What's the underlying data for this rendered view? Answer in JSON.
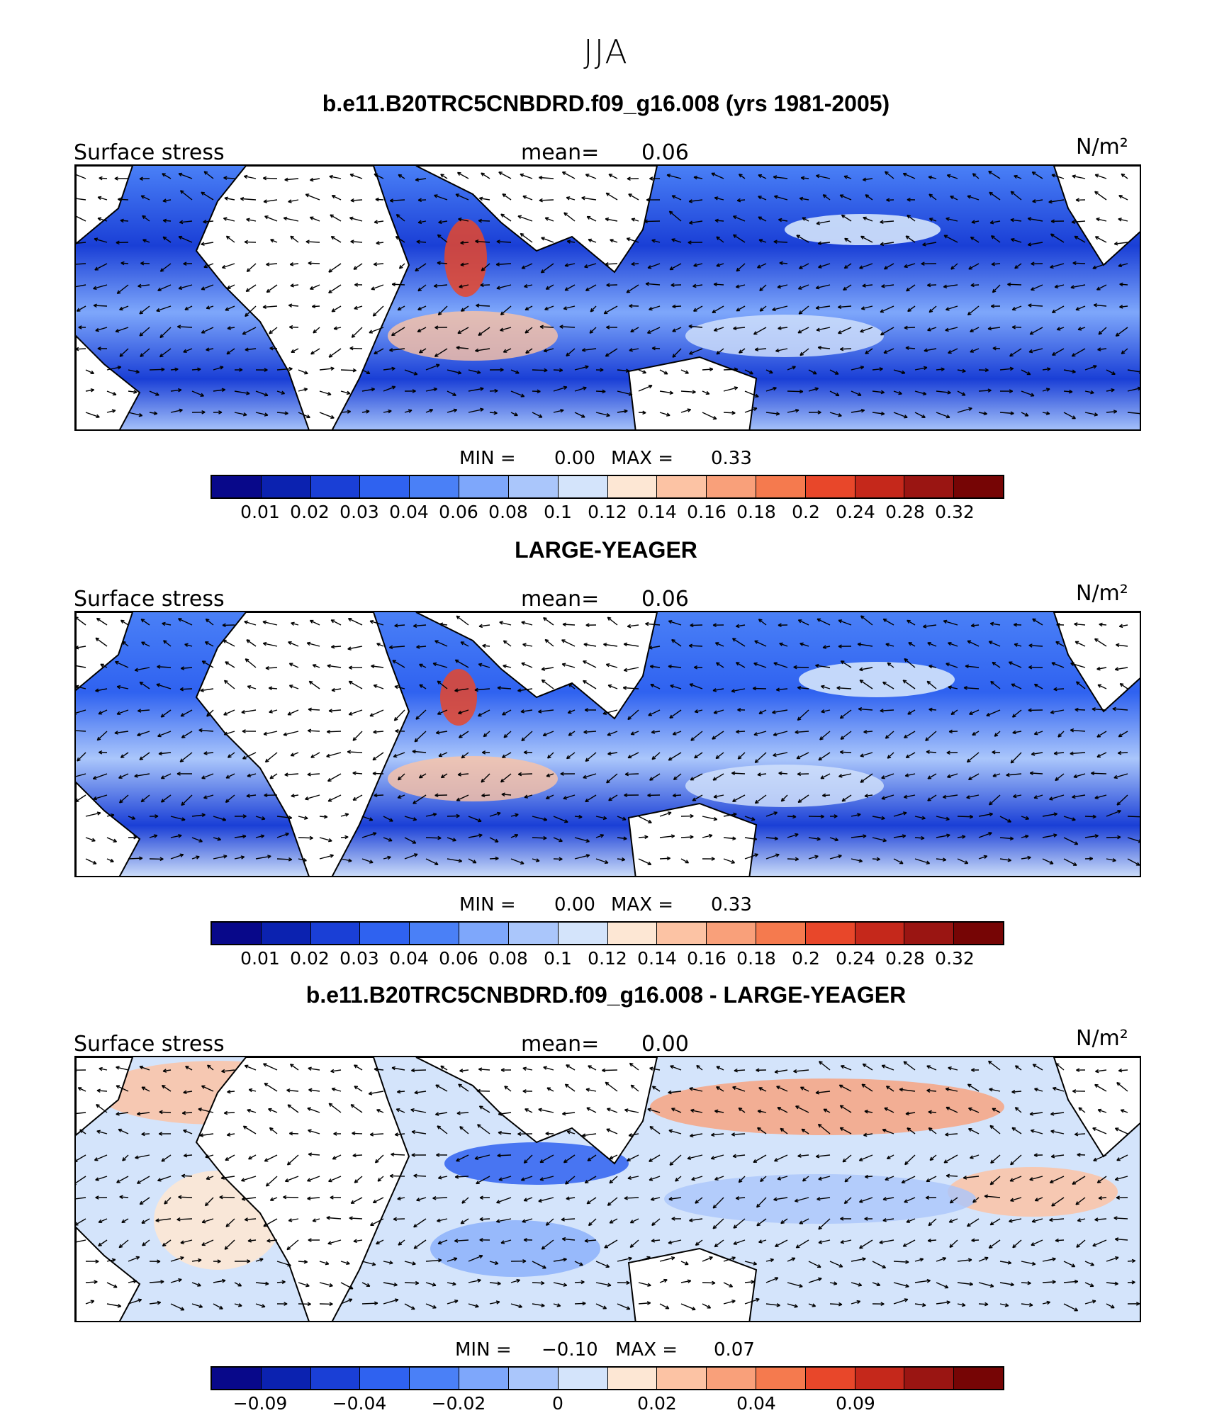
{
  "figure": {
    "title": "JJA",
    "units": "N/m²"
  },
  "panels": [
    {
      "title": "b.e11.B20TRC5CNBDRD.f09_g16.008 (yrs 1981-2005)",
      "field_label": "Surface stress",
      "mean_label": "mean=",
      "mean_value": "0.06",
      "units": "N/m²",
      "min_label": "MIN =",
      "min_value": "0.00",
      "max_label": "MAX =",
      "max_value": "0.33",
      "colorbar_ticks": [
        "0.01",
        "0.02",
        "0.03",
        "0.04",
        "0.06",
        "0.08",
        "0.1",
        "0.12",
        "0.14",
        "0.16",
        "0.18",
        "0.2",
        "0.24",
        "0.28",
        "0.32"
      ]
    },
    {
      "title": "LARGE-YEAGER",
      "field_label": "Surface stress",
      "mean_label": "mean=",
      "mean_value": "0.06",
      "units": "N/m²",
      "min_label": "MIN =",
      "min_value": "0.00",
      "max_label": "MAX =",
      "max_value": "0.33",
      "colorbar_ticks": [
        "0.01",
        "0.02",
        "0.03",
        "0.04",
        "0.06",
        "0.08",
        "0.1",
        "0.12",
        "0.14",
        "0.16",
        "0.18",
        "0.2",
        "0.24",
        "0.28",
        "0.32"
      ]
    },
    {
      "title": "b.e11.B20TRC5CNBDRD.f09_g16.008 - LARGE-YEAGER",
      "field_label": "Surface stress",
      "mean_label": "mean=",
      "mean_value": "0.00",
      "units": "N/m²",
      "min_label": "MIN =",
      "min_value": "−0.10",
      "max_label": "MAX =",
      "max_value": "0.07",
      "colorbar_ticks": [
        "−0.09",
        "−0.04",
        "−0.02",
        "0",
        "0.02",
        "0.04",
        "0.09"
      ]
    }
  ],
  "colorbar_colors": [
    "#08088a",
    "#0b22b0",
    "#1a3fd6",
    "#2f62f0",
    "#4a80f7",
    "#7ea7fb",
    "#aac6fb",
    "#d4e4fb",
    "#fde7d4",
    "#fcc3a4",
    "#f9a07a",
    "#f57a4e",
    "#e8472a",
    "#c5281b",
    "#9a1512",
    "#760505"
  ],
  "colors": {
    "land": "#ffffff",
    "coast": "#000000",
    "arrows": "#000000"
  }
}
